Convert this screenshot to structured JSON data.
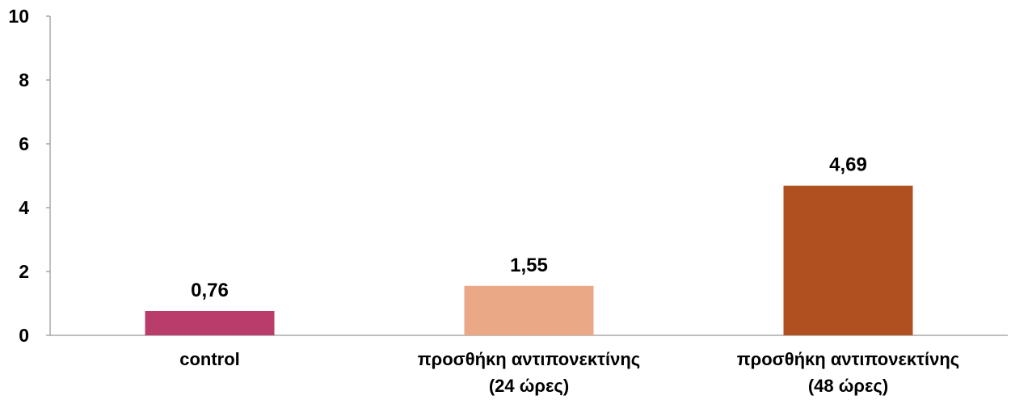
{
  "chart_data": {
    "type": "bar",
    "categories": [
      [
        "control"
      ],
      [
        "προσθήκη αντιπονεκτίνης",
        "(24 ώρες)"
      ],
      [
        "προσθήκη αντιπονεκτίνης",
        "(48 ώρες)"
      ]
    ],
    "values": [
      0.76,
      1.55,
      4.69
    ],
    "value_labels": [
      "0,76",
      "1,55",
      "4,69"
    ],
    "bar_colors": [
      "#B83D6A",
      "#EBA887",
      "#B04F20"
    ],
    "ylim": [
      0,
      10
    ],
    "yticks": [
      0,
      2,
      4,
      6,
      8,
      10
    ],
    "ytick_labels": [
      "0",
      "2",
      "4",
      "6",
      "8",
      "10"
    ],
    "title": "",
    "xlabel": "",
    "ylabel": "",
    "grid": false,
    "legend": "none",
    "axis_color": "#7F7F7F"
  }
}
